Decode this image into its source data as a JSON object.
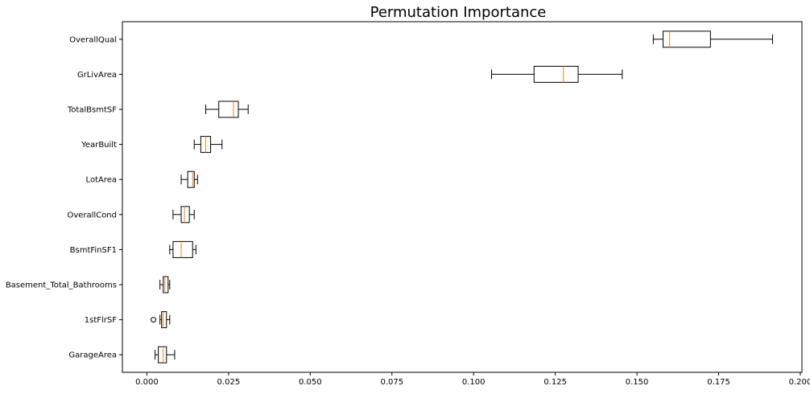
{
  "chart_data": {
    "type": "boxplot",
    "title": "Permutation Importance",
    "xlabel": "",
    "ylabel": "",
    "xlim": [
      -0.0075,
      0.2005
    ],
    "xticks": [
      0.0,
      0.025,
      0.05,
      0.075,
      0.1,
      0.125,
      0.15,
      0.175,
      0.2
    ],
    "xtick_labels": [
      "0.000",
      "0.025",
      "0.050",
      "0.075",
      "0.100",
      "0.125",
      "0.150",
      "0.175",
      "0.200"
    ],
    "grid": false,
    "box_color": "#000000",
    "median_color": "#ff7f0e",
    "categories": [
      "OverallQual",
      "GrLivArea",
      "TotalBsmtSF",
      "YearBuilt",
      "LotArea",
      "OverallCond",
      "BsmtFinSF1",
      "Basement_Total_Bathrooms",
      "1stFlrSF",
      "GarageArea"
    ],
    "boxes": [
      {
        "name": "OverallQual",
        "whisker_low": 0.155,
        "q1": 0.158,
        "median": 0.16,
        "q3": 0.1725,
        "whisker_high": 0.1915,
        "outliers": []
      },
      {
        "name": "GrLivArea",
        "whisker_low": 0.1055,
        "q1": 0.1185,
        "median": 0.1275,
        "q3": 0.132,
        "whisker_high": 0.1455,
        "outliers": []
      },
      {
        "name": "TotalBsmtSF",
        "whisker_low": 0.018,
        "q1": 0.022,
        "median": 0.0265,
        "q3": 0.028,
        "whisker_high": 0.031,
        "outliers": []
      },
      {
        "name": "YearBuilt",
        "whisker_low": 0.0145,
        "q1": 0.0165,
        "median": 0.018,
        "q3": 0.0195,
        "whisker_high": 0.023,
        "outliers": []
      },
      {
        "name": "LotArea",
        "whisker_low": 0.0105,
        "q1": 0.0125,
        "median": 0.014,
        "q3": 0.0145,
        "whisker_high": 0.0155,
        "outliers": []
      },
      {
        "name": "OverallCond",
        "whisker_low": 0.008,
        "q1": 0.0105,
        "median": 0.0115,
        "q3": 0.013,
        "whisker_high": 0.0145,
        "outliers": []
      },
      {
        "name": "BsmtFinSF1",
        "whisker_low": 0.007,
        "q1": 0.008,
        "median": 0.0105,
        "q3": 0.014,
        "whisker_high": 0.015,
        "outliers": []
      },
      {
        "name": "Basement_Total_Bathrooms",
        "whisker_low": 0.004,
        "q1": 0.005,
        "median": 0.0055,
        "q3": 0.0065,
        "whisker_high": 0.007,
        "outliers": []
      },
      {
        "name": "1stFlrSF",
        "whisker_low": 0.004,
        "q1": 0.0045,
        "median": 0.005,
        "q3": 0.006,
        "whisker_high": 0.007,
        "outliers": [
          0.002
        ]
      },
      {
        "name": "GarageArea",
        "whisker_low": 0.0025,
        "q1": 0.0035,
        "median": 0.005,
        "q3": 0.006,
        "whisker_high": 0.0085,
        "outliers": []
      }
    ]
  }
}
